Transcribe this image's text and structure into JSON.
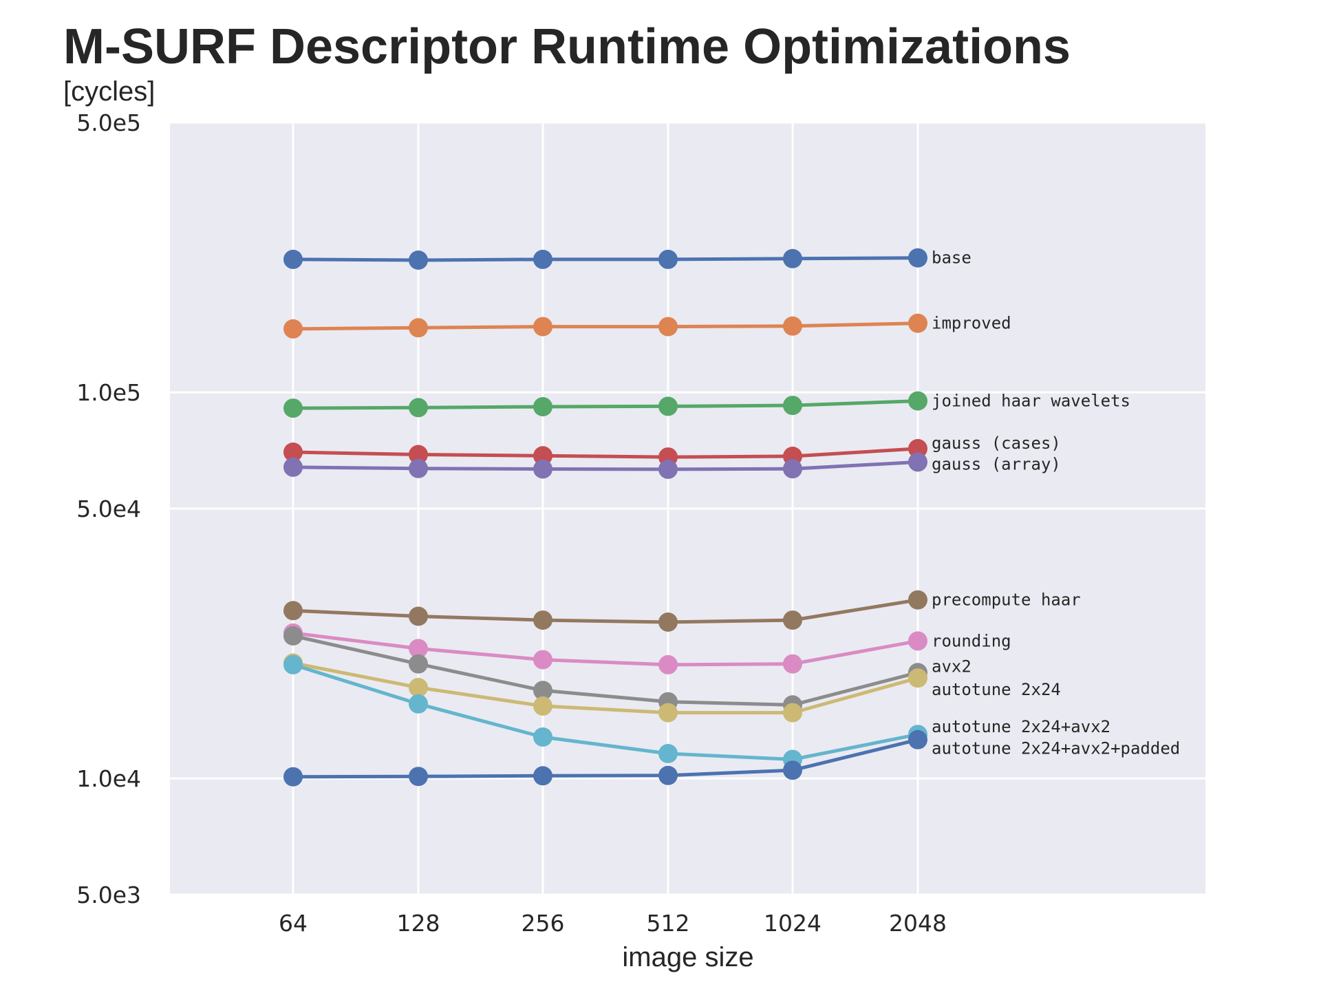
{
  "chart_data": {
    "type": "line",
    "title": "M-SURF Descriptor Runtime Optimizations",
    "ylabel": "[cycles]",
    "xlabel": "image size",
    "yscale": "log",
    "ylim": [
      5000,
      500000
    ],
    "yticks": [
      {
        "value": 500000,
        "label": "5.0e5"
      },
      {
        "value": 100000,
        "label": "1.0e5"
      },
      {
        "value": 50000,
        "label": "5.0e4"
      },
      {
        "value": 10000,
        "label": "1.0e4"
      },
      {
        "value": 5000,
        "label": "5.0e3"
      }
    ],
    "categories": [
      "64",
      "128",
      "256",
      "512",
      "1024",
      "2048"
    ],
    "grid": true,
    "background": "#eaeaf2",
    "series": [
      {
        "name": "base",
        "color": "#4c72b0",
        "values": [
          221000,
          220000,
          221000,
          221000,
          222000,
          223000
        ]
      },
      {
        "name": "improved",
        "color": "#dd8452",
        "values": [
          146000,
          147000,
          148000,
          148000,
          148500,
          151000
        ]
      },
      {
        "name": "joined haar wavelets",
        "color": "#55a868",
        "values": [
          91000,
          91300,
          91800,
          92000,
          92500,
          95000
        ]
      },
      {
        "name": "gauss (cases)",
        "color": "#c44e52",
        "values": [
          70000,
          69000,
          68500,
          68000,
          68300,
          71500
        ]
      },
      {
        "name": "gauss (array)",
        "color": "#8172b3",
        "values": [
          64000,
          63500,
          63300,
          63200,
          63400,
          66000
        ]
      },
      {
        "name": "precompute haar",
        "color": "#937860",
        "values": [
          27200,
          26300,
          25700,
          25400,
          25700,
          29000
        ]
      },
      {
        "name": "rounding",
        "color": "#da8bc3",
        "values": [
          23800,
          21700,
          20300,
          19700,
          19800,
          22700
        ]
      },
      {
        "name": "avx2",
        "color": "#8c8c8c",
        "values": [
          23400,
          19800,
          16900,
          15800,
          15500,
          18800
        ]
      },
      {
        "name": "autotune 2x24",
        "color": "#ccb974",
        "values": [
          19900,
          17200,
          15400,
          14800,
          14800,
          18200
        ]
      },
      {
        "name": "autotune 2x24+avx2",
        "color": "#64b5cd",
        "values": [
          19700,
          15600,
          12800,
          11600,
          11200,
          13000
        ]
      },
      {
        "name": "autotune 2x24+avx2+padded",
        "color": "#4c72b0",
        "values": [
          10100,
          10120,
          10160,
          10180,
          10500,
          12600
        ]
      }
    ],
    "series_labels": [
      {
        "text": "base",
        "value": 223000
      },
      {
        "text": "improved",
        "value": 151000
      },
      {
        "text": "joined haar wavelets",
        "value": 95000
      },
      {
        "text": "gauss (cases)",
        "value": 73900
      },
      {
        "text": "gauss (array)",
        "value": 65200
      },
      {
        "text": "precompute haar",
        "value": 29000
      },
      {
        "text": "rounding",
        "value": 22700
      },
      {
        "text": "avx2",
        "value": 19500
      },
      {
        "text": "autotune 2x24",
        "value": 17000
      },
      {
        "text": "autotune 2x24+avx2",
        "value": 13600
      },
      {
        "text": "autotune 2x24+avx2+padded",
        "value": 11950
      }
    ]
  }
}
